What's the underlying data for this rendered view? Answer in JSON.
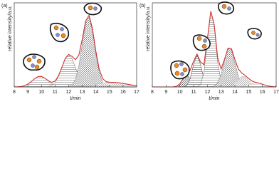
{
  "chart_data": [
    {
      "type": "line",
      "panel_label": "(a)",
      "x_label": "t/min",
      "y_label": "relative intensity/a.u.",
      "x": [
        8,
        8.25,
        8.5,
        8.75,
        9,
        9.25,
        9.5,
        9.75,
        10,
        10.25,
        10.5,
        10.75,
        11,
        11.25,
        11.5,
        11.75,
        12,
        12.25,
        12.5,
        12.75,
        13,
        13.25,
        13.5,
        13.75,
        14,
        14.25,
        14.5,
        14.75,
        15,
        15.25,
        15.5,
        15.75,
        16,
        16.25,
        16.5,
        16.75,
        17
      ],
      "xlim": [
        8,
        17
      ],
      "xticks": [
        8,
        9,
        10,
        11,
        12,
        13,
        14,
        15,
        16,
        17
      ],
      "ylim": [
        0,
        1.1
      ],
      "series": [
        {
          "color": "#666666",
          "hatch": "horizontal",
          "values": [
            0,
            0.002,
            0.005,
            0.016,
            0.037,
            0.07,
            0.108,
            0.135,
            0.138,
            0.114,
            0.077,
            0.042,
            0.019,
            0.007,
            0.002,
            0,
            0,
            0,
            0,
            0,
            0,
            0,
            0,
            0,
            0,
            0,
            0,
            0,
            0,
            0,
            0,
            0,
            0,
            0,
            0,
            0,
            0
          ]
        },
        {
          "color": "#666666",
          "hatch": "horizontal",
          "values": [
            0,
            0,
            0,
            0,
            0,
            0,
            0,
            0,
            0,
            0.001,
            0.005,
            0.018,
            0.057,
            0.136,
            0.255,
            0.371,
            0.42,
            0.371,
            0.255,
            0.136,
            0.057,
            0.018,
            0.005,
            0.001,
            0,
            0,
            0,
            0,
            0,
            0,
            0,
            0,
            0,
            0,
            0,
            0,
            0
          ]
        },
        {
          "color": "#777777",
          "hatch": "cross",
          "values": [
            0,
            0,
            0,
            0,
            0,
            0,
            0,
            0,
            0,
            0,
            0,
            0,
            0,
            0,
            0,
            0.001,
            0.005,
            0.026,
            0.099,
            0.274,
            0.558,
            0.833,
            0.914,
            0.737,
            0.436,
            0.189,
            0.06,
            0.014,
            0.002,
            0,
            0,
            0,
            0,
            0,
            0,
            0,
            0
          ]
        },
        {
          "color": "#aaaaaa",
          "hatch": "cross",
          "values": [
            0,
            0,
            0,
            0,
            0,
            0,
            0,
            0,
            0,
            0,
            0,
            0,
            0,
            0,
            0,
            0,
            0.001,
            0.002,
            0.003,
            0.005,
            0.008,
            0.012,
            0.018,
            0.025,
            0.033,
            0.041,
            0.049,
            0.055,
            0.059,
            0.06,
            0.058,
            0.053,
            0.046,
            0.038,
            0.03,
            0.022,
            0.016
          ]
        },
        {
          "color": "#d03030",
          "values": [
            0,
            0.002,
            0.005,
            0.016,
            0.037,
            0.07,
            0.108,
            0.135,
            0.138,
            0.115,
            0.082,
            0.06,
            0.076,
            0.143,
            0.257,
            0.372,
            0.426,
            0.399,
            0.357,
            0.415,
            0.623,
            0.863,
            0.937,
            0.763,
            0.469,
            0.23,
            0.109,
            0.069,
            0.061,
            0.06,
            0.058,
            0.053,
            0.046,
            0.038,
            0.03,
            0.022,
            0.016
          ]
        }
      ]
    },
    {
      "type": "line",
      "panel_label": "(b)",
      "x_label": "t/min",
      "y_label": "relative intensity/a.u.",
      "x": [
        8,
        8.25,
        8.5,
        8.75,
        9,
        9.25,
        9.5,
        9.75,
        10,
        10.25,
        10.5,
        10.75,
        11,
        11.25,
        11.5,
        11.75,
        12,
        12.25,
        12.5,
        12.75,
        13,
        13.25,
        13.5,
        13.75,
        14,
        14.25,
        14.5,
        14.75,
        15,
        15.25,
        15.5,
        15.75,
        16,
        16.25,
        16.5,
        16.75,
        17
      ],
      "xlim": [
        8,
        17
      ],
      "xticks": [
        8,
        9,
        10,
        11,
        12,
        13,
        14,
        15,
        16,
        17
      ],
      "ylim": [
        0,
        1.1
      ],
      "series": [
        {
          "color": "#555555",
          "hatch": "cross",
          "values": [
            0,
            0,
            0,
            0,
            0,
            0,
            0.001,
            0.007,
            0.04,
            0.113,
            0.16,
            0.113,
            0.04,
            0.007,
            0.001,
            0,
            0,
            0,
            0,
            0,
            0,
            0,
            0,
            0,
            0,
            0,
            0,
            0,
            0,
            0,
            0,
            0,
            0,
            0,
            0,
            0,
            0
          ]
        },
        {
          "color": "#333333",
          "hatch": "horizontal",
          "values": [
            0,
            0,
            0,
            0,
            0,
            0,
            0,
            0,
            0,
            0.002,
            0.018,
            0.105,
            0.297,
            0.42,
            0.297,
            0.105,
            0.018,
            0.002,
            0,
            0,
            0,
            0,
            0,
            0,
            0,
            0,
            0,
            0,
            0,
            0,
            0,
            0,
            0,
            0,
            0,
            0,
            0
          ]
        },
        {
          "color": "#666666",
          "hatch": "horizontal",
          "values": [
            0,
            0,
            0,
            0,
            0,
            0,
            0,
            0,
            0,
            0,
            0,
            0,
            0,
            0.002,
            0.029,
            0.186,
            0.607,
            0.986,
            0.801,
            0.325,
            0.066,
            0.007,
            0,
            0,
            0,
            0,
            0,
            0,
            0,
            0,
            0,
            0,
            0,
            0,
            0,
            0,
            0
          ]
        },
        {
          "color": "#777777",
          "hatch": "cross",
          "values": [
            0,
            0,
            0,
            0,
            0,
            0,
            0,
            0,
            0,
            0,
            0,
            0,
            0,
            0,
            0,
            0,
            0,
            0.002,
            0.012,
            0.054,
            0.169,
            0.355,
            0.504,
            0.485,
            0.315,
            0.139,
            0.041,
            0.008,
            0.001,
            0,
            0,
            0,
            0,
            0,
            0,
            0,
            0
          ]
        },
        {
          "color": "#999999",
          "hatch": "cross",
          "values": [
            0,
            0,
            0,
            0,
            0,
            0,
            0,
            0,
            0,
            0,
            0,
            0,
            0,
            0,
            0,
            0,
            0,
            0,
            0,
            0,
            0,
            0,
            0.003,
            0.015,
            0.046,
            0.095,
            0.136,
            0.13,
            0.085,
            0.037,
            0.011,
            0.002,
            0,
            0,
            0,
            0,
            0
          ]
        },
        {
          "color": "#bbbbbb",
          "hatch": "horizontal",
          "values": [
            0,
            0,
            0,
            0,
            0,
            0,
            0,
            0,
            0,
            0,
            0,
            0,
            0,
            0,
            0,
            0,
            0,
            0,
            0,
            0,
            0,
            0,
            0,
            0,
            0,
            0.001,
            0.004,
            0.012,
            0.024,
            0.039,
            0.049,
            0.048,
            0.036,
            0.021,
            0.01,
            0.004,
            0.001
          ]
        },
        {
          "color": "#d03030",
          "values": [
            0,
            0,
            0,
            0,
            0,
            0,
            0.001,
            0.007,
            0.04,
            0.115,
            0.178,
            0.218,
            0.337,
            0.429,
            0.327,
            0.291,
            0.625,
            0.99,
            0.813,
            0.379,
            0.235,
            0.362,
            0.507,
            0.5,
            0.361,
            0.235,
            0.181,
            0.15,
            0.11,
            0.076,
            0.06,
            0.05,
            0.036,
            0.021,
            0.01,
            0.004,
            0.001
          ]
        }
      ]
    }
  ]
}
